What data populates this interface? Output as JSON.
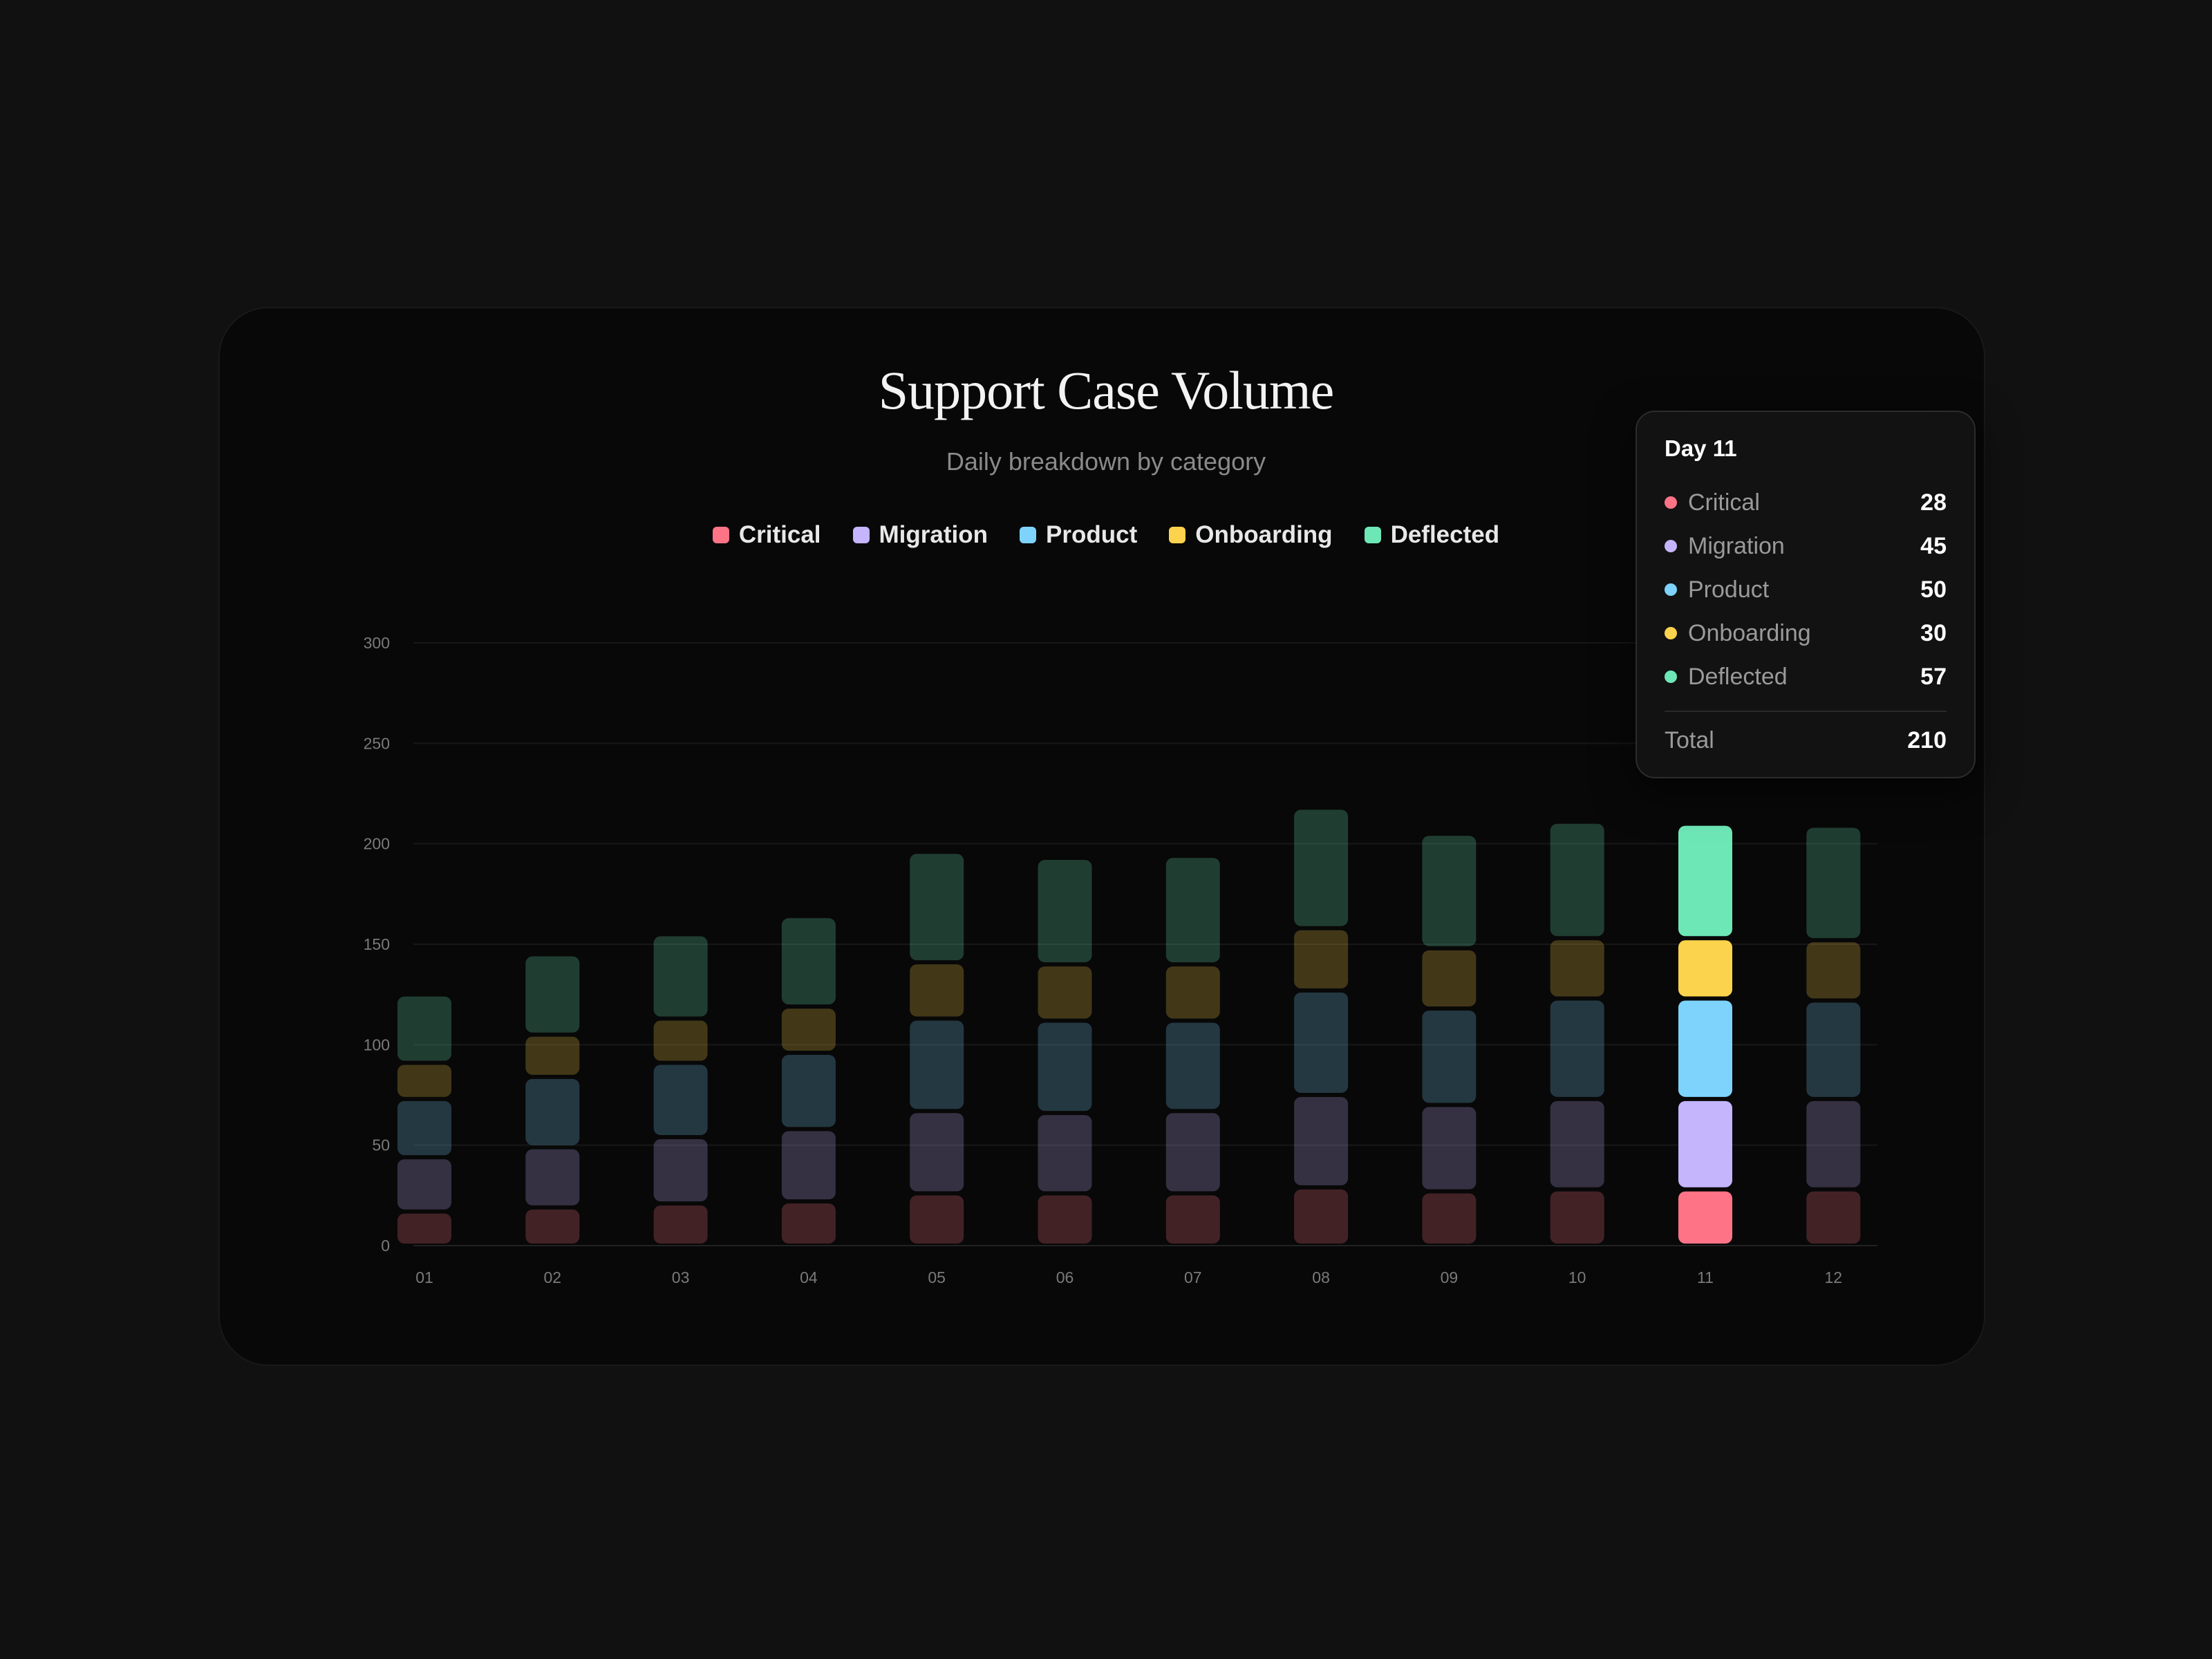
{
  "chart_data": {
    "type": "bar",
    "stacked": true,
    "title": "Support Case Volume",
    "subtitle": "Daily breakdown by category",
    "xlabel": "",
    "ylabel": "",
    "ylim": [
      0,
      300
    ],
    "yticks": [
      0,
      50,
      100,
      150,
      200,
      250,
      300
    ],
    "grid": true,
    "legend_position": "top-center",
    "categories": [
      "01",
      "02",
      "03",
      "04",
      "05",
      "06",
      "07",
      "08",
      "09",
      "10",
      "11",
      "12"
    ],
    "highlighted_index": 10,
    "series": [
      {
        "name": "Critical",
        "color": "#ff7387",
        "values": [
          17,
          19,
          21,
          22,
          26,
          26,
          26,
          29,
          27,
          28,
          28,
          28
        ]
      },
      {
        "name": "Migration",
        "color": "#c4b5fd",
        "values": [
          27,
          30,
          33,
          36,
          41,
          40,
          41,
          46,
          43,
          45,
          45,
          45
        ]
      },
      {
        "name": "Product",
        "color": "#7dd3fc",
        "values": [
          29,
          35,
          37,
          38,
          46,
          46,
          45,
          52,
          48,
          50,
          50,
          49
        ]
      },
      {
        "name": "Onboarding",
        "color": "#fcd34d",
        "values": [
          18,
          21,
          22,
          23,
          28,
          28,
          28,
          31,
          30,
          30,
          30,
          30
        ]
      },
      {
        "name": "Deflected",
        "color": "#6ee7b7",
        "values": [
          34,
          40,
          42,
          45,
          55,
          53,
          54,
          60,
          57,
          58,
          57,
          57
        ]
      }
    ]
  },
  "tooltip": {
    "title": "Day 11",
    "rows": [
      {
        "label": "Critical",
        "value": "28",
        "color": "#ff7387"
      },
      {
        "label": "Migration",
        "value": "45",
        "color": "#c4b5fd"
      },
      {
        "label": "Product",
        "value": "50",
        "color": "#7dd3fc"
      },
      {
        "label": "Onboarding",
        "value": "30",
        "color": "#fcd34d"
      },
      {
        "label": "Deflected",
        "value": "57",
        "color": "#6ee7b7"
      }
    ],
    "total_label": "Total",
    "total_value": "210"
  }
}
